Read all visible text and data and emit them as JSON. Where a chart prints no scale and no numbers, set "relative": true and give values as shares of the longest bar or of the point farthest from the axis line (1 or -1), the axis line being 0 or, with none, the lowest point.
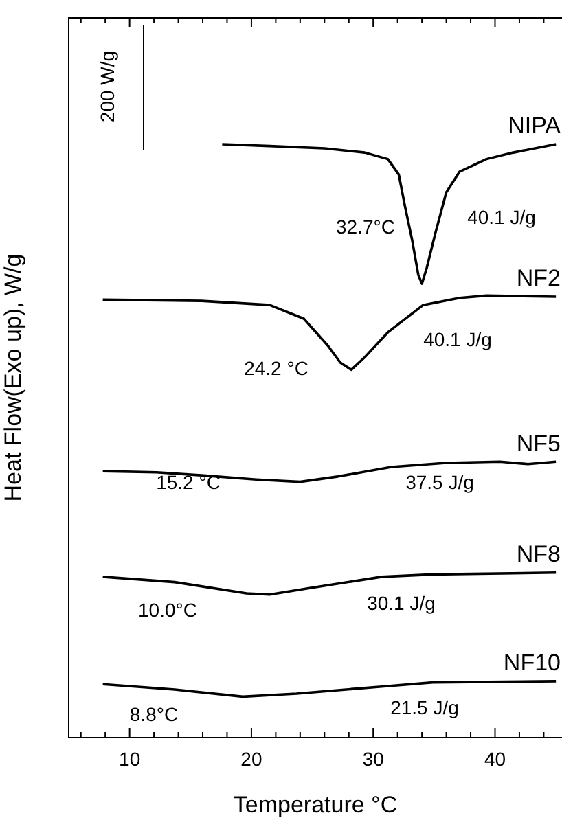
{
  "chart_data": {
    "type": "line",
    "relative": true,
    "xlabel": "Temperature °C",
    "ylabel": "Heat Flow(Exo up), W/g",
    "xlim": [
      5,
      45.5
    ],
    "xticks": [
      {
        "value": 6,
        "label": null
      },
      {
        "value": 8,
        "label": null
      },
      10,
      {
        "value": 12,
        "label": null
      },
      {
        "value": 14,
        "label": null
      },
      {
        "value": 16,
        "label": null
      },
      {
        "value": 18,
        "label": null
      },
      20,
      {
        "value": 22,
        "label": null
      },
      {
        "value": 24,
        "label": null
      },
      {
        "value": 26,
        "label": null
      },
      {
        "value": 28,
        "label": null
      },
      30,
      {
        "value": 32,
        "label": null
      },
      {
        "value": 34,
        "label": null
      },
      {
        "value": 36,
        "label": null
      },
      {
        "value": 38,
        "label": null
      },
      40,
      {
        "value": 42,
        "label": null
      },
      {
        "value": 44,
        "label": null
      }
    ],
    "series": [
      {
        "name": "NIPA",
        "color": "#000000",
        "x": [
          17.6,
          21.5,
          26,
          29.3,
          31.2,
          32.1,
          32.6,
          33.2,
          33.7,
          34.0,
          34.4,
          35.1,
          36,
          37.1,
          39.3,
          41.5,
          45
        ],
        "values": [
          1,
          0.997,
          0.993,
          0.986,
          0.975,
          0.949,
          0.896,
          0.838,
          0.78,
          0.765,
          0.792,
          0.85,
          0.919,
          0.954,
          0.975,
          0.986,
          1
        ]
      },
      {
        "name": "NF2",
        "color": "#000000",
        "x": [
          7.8,
          15.9,
          21.5,
          24.3,
          26.3,
          27.3,
          28.2,
          29.3,
          31.2,
          34.1,
          37.1,
          39.3,
          45
        ],
        "values": [
          0.738,
          0.736,
          0.729,
          0.706,
          0.66,
          0.632,
          0.62,
          0.641,
          0.683,
          0.729,
          0.741,
          0.745,
          0.743
        ]
      },
      {
        "name": "NF5",
        "color": "#000000",
        "x": [
          7.8,
          12.2,
          15.9,
          20.4,
          24.0,
          27.1,
          31.5,
          36,
          40.4,
          42.7,
          45
        ],
        "values": [
          0.449,
          0.447,
          0.442,
          0.435,
          0.431,
          0.44,
          0.456,
          0.463,
          0.465,
          0.461,
          0.465
        ]
      },
      {
        "name": "NF8",
        "color": "#000000",
        "x": [
          7.8,
          13.7,
          19.6,
          21.5,
          24.8,
          30.7,
          34.9,
          45
        ],
        "values": [
          0.271,
          0.262,
          0.243,
          0.241,
          0.252,
          0.271,
          0.275,
          0.278
        ]
      },
      {
        "name": "NF10",
        "color": "#000000",
        "x": [
          7.8,
          13.7,
          19.3,
          23.7,
          30.7,
          34.9,
          45
        ],
        "values": [
          0.09,
          0.081,
          0.069,
          0.074,
          0.086,
          0.093,
          0.095
        ]
      }
    ],
    "annotations": [
      "200 W/g",
      "32.7°C",
      "40.1 J/g",
      "24.2 °C",
      "40.1 J/g",
      "15.2 °C",
      "37.5 J/g",
      "10.0°C",
      "30.1 J/g",
      "8.8°C",
      "21.5 J/g"
    ],
    "legend": false,
    "grid": false,
    "marker": "none",
    "line_style": "solid"
  }
}
